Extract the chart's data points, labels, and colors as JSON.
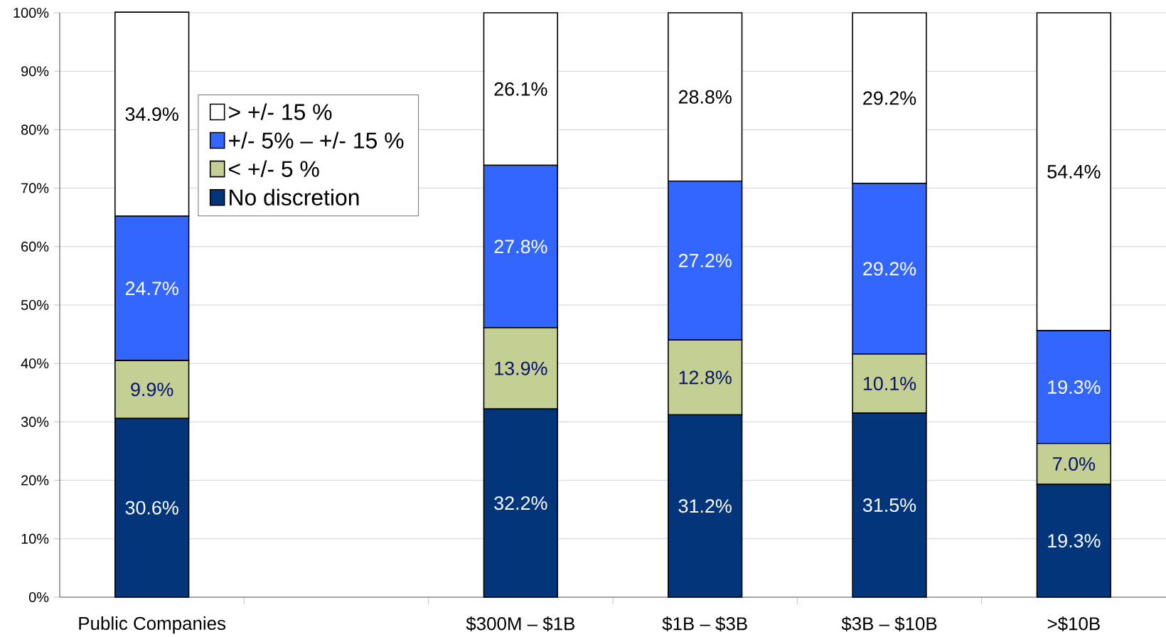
{
  "chart_data": {
    "type": "bar",
    "stacked": true,
    "categories": [
      "Public Companies",
      null,
      "$300M – $1B",
      "$1B – $3B",
      "$3B – $10B",
      ">$10B"
    ],
    "series": [
      {
        "name": "No discretion",
        "color": "#03357a",
        "values": [
          30.6,
          null,
          32.2,
          31.2,
          31.5,
          19.3
        ],
        "value_labels": [
          "30.6%",
          null,
          "32.2%",
          "31.2%",
          "31.5%",
          "19.3%"
        ]
      },
      {
        "name": "< +/- 5 %",
        "color": "#c4cf94",
        "values": [
          9.9,
          null,
          13.9,
          12.8,
          10.1,
          7.0
        ],
        "value_labels": [
          "9.9%",
          null,
          "13.9%",
          "12.8%",
          "10.1%",
          "7.0%"
        ]
      },
      {
        "name": "+/- 5% – +/- 15 %",
        "color": "#3366ff",
        "values": [
          24.7,
          null,
          27.8,
          27.2,
          29.2,
          19.3
        ],
        "value_labels": [
          "24.7%",
          null,
          "27.8%",
          "27.2%",
          "29.2%",
          "19.3%"
        ]
      },
      {
        "name": "> +/- 15 %",
        "color": "#ffffff",
        "values": [
          34.9,
          null,
          26.1,
          28.8,
          29.2,
          54.4
        ],
        "value_labels": [
          "34.9%",
          null,
          "26.1%",
          "28.8%",
          "29.2%",
          "54.4%"
        ]
      }
    ],
    "ylim": [
      0,
      100
    ],
    "yticks": [
      {
        "value": 0,
        "label": "0%"
      },
      {
        "value": 10,
        "label": "10%"
      },
      {
        "value": 20,
        "label": "20%"
      },
      {
        "value": 30,
        "label": "30%"
      },
      {
        "value": 40,
        "label": "40%"
      },
      {
        "value": 50,
        "label": "50%"
      },
      {
        "value": 60,
        "label": "60%"
      },
      {
        "value": 70,
        "label": "70%"
      },
      {
        "value": 80,
        "label": "80%"
      },
      {
        "value": 90,
        "label": "90%"
      },
      {
        "value": 100,
        "label": "100%"
      }
    ],
    "grid": "y",
    "legend": "top left"
  }
}
